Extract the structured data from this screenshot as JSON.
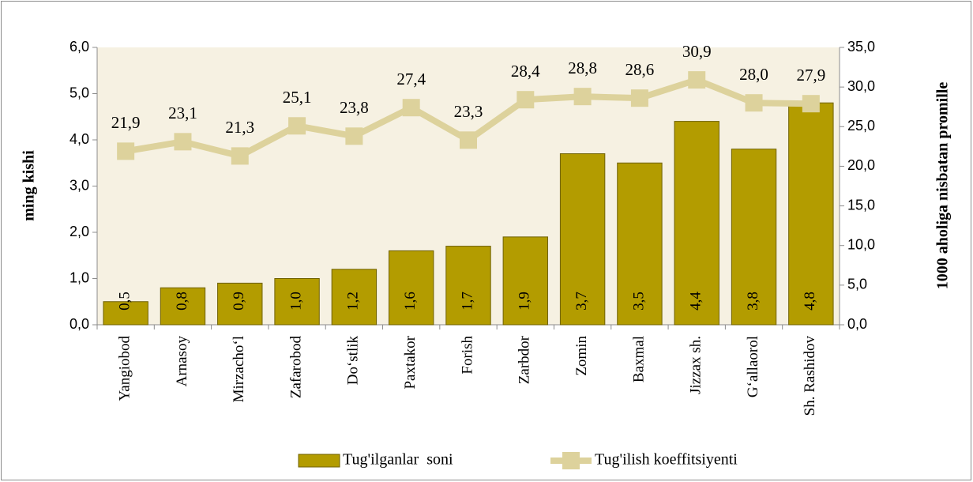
{
  "chart_data": {
    "type": "bar-line",
    "ylabel": "ming kishi",
    "y2label": "1000 aholiga nisbatan promille",
    "categories": [
      "Yangiobod",
      "Arnasoy",
      "Mirzacho‘l",
      "Zafarobod",
      "Do‘stlik",
      "Paxtakor",
      "Forish",
      "Zarbdor",
      "Zomin",
      "Baxmal",
      "Jizzax sh.",
      "G‘allaorol",
      "Sh. Rashidov"
    ],
    "series": [
      {
        "name": "Tug'ilganlar  soni",
        "type": "bar",
        "color": "#b39c00",
        "values": [
          0.5,
          0.8,
          0.9,
          1.0,
          1.2,
          1.6,
          1.7,
          1.9,
          3.7,
          3.5,
          4.4,
          3.8,
          4.8
        ],
        "value_labels": [
          "0,5",
          "0,8",
          "0,9",
          "1,0",
          "1,2",
          "1,6",
          "1,7",
          "1,9",
          "3,7",
          "3,5",
          "4,4",
          "3,8",
          "4,8"
        ]
      },
      {
        "name": "Tug'ilish koeffitsiyenti",
        "type": "line",
        "axis": "y2",
        "color": "#ddd29c",
        "values": [
          21.9,
          23.1,
          21.3,
          25.1,
          23.8,
          27.4,
          23.3,
          28.4,
          28.8,
          28.6,
          30.9,
          28.0,
          27.9
        ],
        "value_labels": [
          "21,9",
          "23,1",
          "21,3",
          "25,1",
          "23,8",
          "27,4",
          "23,3",
          "28,4",
          "28,8",
          "28,6",
          "30,9",
          "28,0",
          "27,9"
        ]
      }
    ],
    "ylim": [
      0,
      6
    ],
    "yticks": [
      {
        "value": 0,
        "label": "0,0"
      },
      {
        "value": 1,
        "label": "1,0"
      },
      {
        "value": 2,
        "label": "2,0"
      },
      {
        "value": 3,
        "label": "3,0"
      },
      {
        "value": 4,
        "label": "4,0"
      },
      {
        "value": 5,
        "label": "5,0"
      },
      {
        "value": 6,
        "label": "6,0"
      }
    ],
    "y2lim": [
      0,
      35
    ],
    "y2ticks": [
      {
        "value": 0,
        "label": "0,0"
      },
      {
        "value": 5,
        "label": "5,0"
      },
      {
        "value": 10,
        "label": "10,0"
      },
      {
        "value": 15,
        "label": "15,0"
      },
      {
        "value": 20,
        "label": "20,0"
      },
      {
        "value": 25,
        "label": "25,0"
      },
      {
        "value": 30,
        "label": "30,0"
      },
      {
        "value": 35,
        "label": "35,0"
      }
    ],
    "legend": "bottom"
  }
}
